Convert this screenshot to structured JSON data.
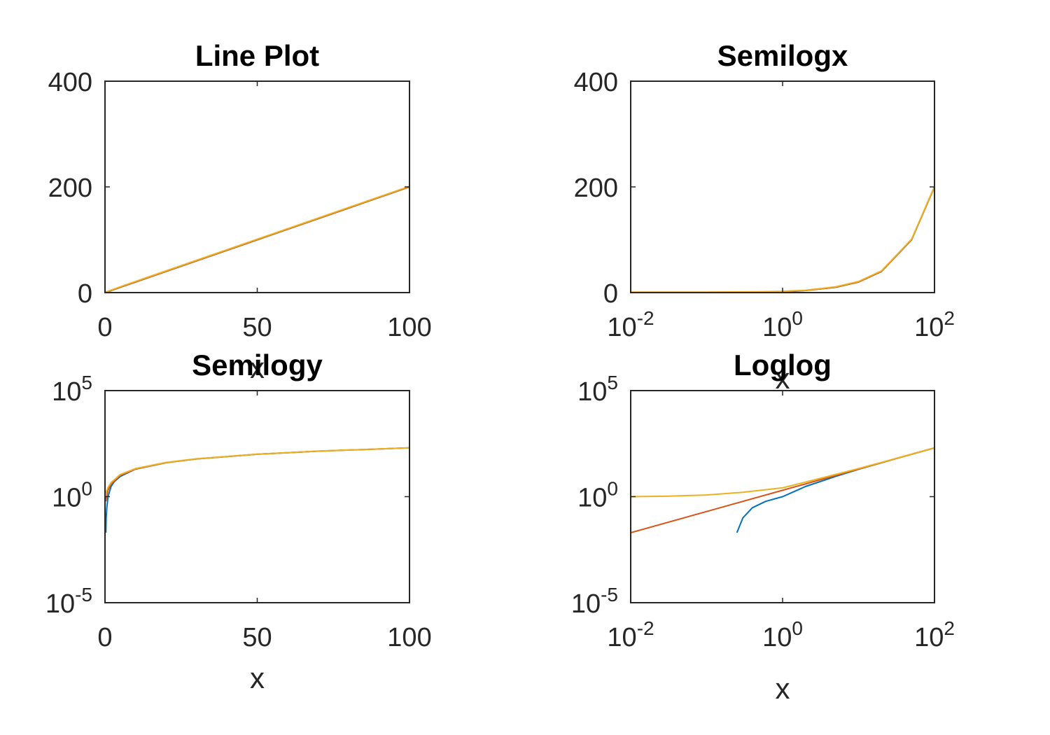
{
  "colors": {
    "series1": "#0072BD",
    "series2": "#D95319",
    "series3": "#EDB120",
    "axes": "#262626",
    "background": "#ffffff"
  },
  "chart_data": [
    {
      "type": "line",
      "title": "Line Plot",
      "xlabel": "x",
      "ylabel": "",
      "xscale": "linear",
      "yscale": "linear",
      "xlim": [
        0,
        100
      ],
      "ylim": [
        0,
        400
      ],
      "xticks": [
        {
          "value": 0,
          "label": "0"
        },
        {
          "value": 50,
          "label": "50"
        },
        {
          "value": 100,
          "label": "100"
        }
      ],
      "yticks": [
        {
          "value": 0,
          "label": "0"
        },
        {
          "value": 200,
          "label": "200"
        },
        {
          "value": 400,
          "label": "400"
        }
      ],
      "grid": false,
      "series": [
        {
          "color": "#0072BD",
          "x": [
            0.01,
            1,
            2,
            5,
            10,
            20,
            50,
            100
          ],
          "y": [
            0.0002,
            1,
            4,
            10,
            20,
            40,
            100,
            200
          ]
        },
        {
          "color": "#D95319",
          "x": [
            0.01,
            1,
            5,
            10,
            20,
            50,
            100
          ],
          "y": [
            0.02,
            2,
            10,
            20,
            40,
            100,
            200
          ]
        },
        {
          "color": "#EDB120",
          "x": [
            0.01,
            1,
            5,
            10,
            20,
            50,
            100
          ],
          "y": [
            1,
            2.5,
            11,
            21,
            41,
            101,
            201
          ]
        }
      ]
    },
    {
      "type": "line",
      "title": "Semilogx",
      "xlabel": "x",
      "ylabel": "",
      "xscale": "log",
      "yscale": "linear",
      "xlim": [
        0.01,
        100
      ],
      "ylim": [
        0,
        400
      ],
      "xticks": [
        {
          "value": 0.01,
          "base": "10",
          "exp": "-2"
        },
        {
          "value": 1,
          "base": "10",
          "exp": "0"
        },
        {
          "value": 100,
          "base": "10",
          "exp": "2"
        }
      ],
      "yticks": [
        {
          "value": 0,
          "label": "0"
        },
        {
          "value": 200,
          "label": "200"
        },
        {
          "value": 400,
          "label": "400"
        }
      ],
      "grid": false,
      "series": [
        {
          "color": "#0072BD",
          "x": [
            0.01,
            0.1,
            0.5,
            1,
            2,
            5,
            10,
            20,
            50,
            100
          ],
          "y": [
            0.0002,
            0.02,
            0.5,
            1,
            4,
            10,
            20,
            40,
            100,
            200
          ]
        },
        {
          "color": "#D95319",
          "x": [
            0.01,
            0.1,
            0.5,
            1,
            2,
            5,
            10,
            20,
            50,
            100
          ],
          "y": [
            0.02,
            0.2,
            1,
            2,
            4,
            10,
            20,
            40,
            100,
            200
          ]
        },
        {
          "color": "#EDB120",
          "x": [
            0.01,
            0.1,
            0.5,
            1,
            2,
            5,
            10,
            20,
            50,
            100
          ],
          "y": [
            1,
            1.1,
            1.6,
            2.5,
            4.5,
            11,
            21,
            41,
            101,
            201
          ]
        }
      ]
    },
    {
      "type": "line",
      "title": "Semilogy",
      "xlabel": "x",
      "ylabel": "",
      "xscale": "linear",
      "yscale": "log",
      "xlim": [
        0,
        100
      ],
      "ylim": [
        1e-05,
        100000
      ],
      "xticks": [
        {
          "value": 0,
          "label": "0"
        },
        {
          "value": 50,
          "label": "50"
        },
        {
          "value": 100,
          "label": "100"
        }
      ],
      "yticks": [
        {
          "value": 1e-05,
          "base": "10",
          "exp": "-5"
        },
        {
          "value": 1,
          "base": "10",
          "exp": "0"
        },
        {
          "value": 100000,
          "base": "10",
          "exp": "5"
        }
      ],
      "grid": false,
      "series": [
        {
          "color": "#0072BD",
          "x": [
            0.3,
            0.4,
            0.6,
            1,
            2,
            3,
            5,
            10,
            20,
            30,
            50,
            70,
            100
          ],
          "y": [
            0.02,
            0.1,
            0.3,
            1,
            3,
            5,
            9,
            20,
            40,
            60,
            100,
            140,
            200
          ]
        },
        {
          "color": "#D95319",
          "x": [
            0.3,
            0.5,
            1,
            2,
            5,
            10,
            20,
            30,
            50,
            70,
            100
          ],
          "y": [
            0.6,
            1,
            2,
            4,
            10,
            20,
            40,
            60,
            100,
            140,
            200
          ]
        },
        {
          "color": "#EDB120",
          "x": [
            0.3,
            0.5,
            1,
            2,
            5,
            10,
            20,
            30,
            50,
            70,
            100
          ],
          "y": [
            1.4,
            1.8,
            2.7,
            4.6,
            11,
            21,
            41,
            61,
            101,
            141,
            201
          ]
        }
      ]
    },
    {
      "type": "line",
      "title": "Loglog",
      "xlabel": "x",
      "ylabel": "",
      "xscale": "log",
      "yscale": "log",
      "xlim": [
        0.01,
        100
      ],
      "ylim": [
        1e-05,
        100000
      ],
      "xticks": [
        {
          "value": 0.01,
          "base": "10",
          "exp": "-2"
        },
        {
          "value": 1,
          "base": "10",
          "exp": "0"
        },
        {
          "value": 100,
          "base": "10",
          "exp": "2"
        }
      ],
      "yticks": [
        {
          "value": 1e-05,
          "base": "10",
          "exp": "-5"
        },
        {
          "value": 1,
          "base": "10",
          "exp": "0"
        },
        {
          "value": 100000,
          "base": "10",
          "exp": "5"
        }
      ],
      "grid": false,
      "series": [
        {
          "color": "#0072BD",
          "x": [
            0.25,
            0.3,
            0.4,
            0.6,
            1,
            2,
            5,
            10,
            20,
            50,
            100
          ],
          "y": [
            0.02,
            0.1,
            0.3,
            0.6,
            1,
            3,
            9,
            19.5,
            40,
            100,
            200
          ]
        },
        {
          "color": "#D95319",
          "x": [
            0.01,
            0.1,
            1,
            10,
            100
          ],
          "y": [
            0.02,
            0.2,
            2,
            20,
            200
          ]
        },
        {
          "color": "#EDB120",
          "x": [
            0.01,
            0.03,
            0.1,
            0.3,
            1,
            3,
            10,
            30,
            100
          ],
          "y": [
            1,
            1.05,
            1.2,
            1.6,
            2.6,
            7,
            21,
            61,
            201
          ]
        }
      ]
    }
  ]
}
